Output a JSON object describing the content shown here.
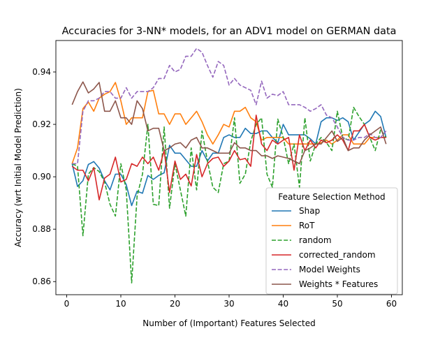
{
  "chart_data": {
    "type": "line",
    "title": "Accuracies for 3-NN* models, for an ADV1 model on GERMAN data",
    "xlabel": "Number of (Important) Features Selected",
    "ylabel": "Accuracy (wrt Initial Model Prediction)",
    "xlim": [
      -2,
      62
    ],
    "ylim": [
      0.855,
      0.952
    ],
    "xticks": [
      0,
      10,
      20,
      30,
      40,
      50,
      60
    ],
    "yticks": [
      0.86,
      0.88,
      0.9,
      0.92,
      0.94
    ],
    "ytick_labels": [
      "0.86",
      "0.88",
      "0.90",
      "0.92",
      "0.94"
    ],
    "grid": false,
    "legend": {
      "title": "Feature Selection Method",
      "placement": "lower-right"
    },
    "x": [
      1,
      2,
      3,
      4,
      5,
      6,
      7,
      8,
      9,
      10,
      11,
      12,
      13,
      14,
      15,
      16,
      17,
      18,
      19,
      20,
      21,
      22,
      23,
      24,
      25,
      26,
      27,
      28,
      29,
      30,
      31,
      32,
      33,
      34,
      35,
      36,
      37,
      38,
      39,
      40,
      41,
      42,
      43,
      44,
      45,
      46,
      47,
      48,
      49,
      50,
      51,
      52,
      53,
      54,
      55,
      56,
      57,
      58,
      59
    ],
    "series": [
      {
        "name": "Shap",
        "color": "#1f77b4",
        "dash": "solid",
        "values": [
          0.905,
          0.8963,
          0.8985,
          0.9047,
          0.9058,
          0.9033,
          0.8985,
          0.895,
          0.901,
          0.901,
          0.897,
          0.889,
          0.8945,
          0.8937,
          0.9005,
          0.899,
          0.9005,
          0.9015,
          0.912,
          0.909,
          0.909,
          0.9065,
          0.904,
          0.904,
          0.91,
          0.906,
          0.909,
          0.909,
          0.915,
          0.916,
          0.915,
          0.915,
          0.9185,
          0.9165,
          0.9165,
          0.9175,
          0.9175,
          0.915,
          0.913,
          0.92,
          0.916,
          0.916,
          0.916,
          0.916,
          0.9145,
          0.9125,
          0.921,
          0.9225,
          0.9225,
          0.9215,
          0.9225,
          0.921,
          0.914,
          0.917,
          0.92,
          0.9215,
          0.925,
          0.923,
          0.915
        ]
      },
      {
        "name": "RoT",
        "color": "#ff7f0e",
        "dash": "solid",
        "values": [
          0.905,
          0.911,
          0.926,
          0.9285,
          0.925,
          0.93,
          0.9315,
          0.9325,
          0.936,
          0.929,
          0.92,
          0.9225,
          0.9225,
          0.9225,
          0.9325,
          0.933,
          0.924,
          0.924,
          0.92,
          0.924,
          0.924,
          0.92,
          0.9225,
          0.925,
          0.921,
          0.916,
          0.9125,
          0.916,
          0.92,
          0.919,
          0.925,
          0.925,
          0.9265,
          0.9225,
          0.921,
          0.914,
          0.915,
          0.915,
          0.915,
          0.915,
          0.9125,
          0.9125,
          0.9125,
          0.9125,
          0.9125,
          0.9125,
          0.913,
          0.914,
          0.9125,
          0.914,
          0.916,
          0.916,
          0.9125,
          0.9125,
          0.9125,
          0.915,
          0.915,
          0.915,
          0.915
        ]
      },
      {
        "name": "random",
        "color": "#2ca02c",
        "dash": "dashed",
        "values": [
          0.905,
          0.904,
          0.8775,
          0.901,
          0.9035,
          0.902,
          0.898,
          0.8895,
          0.885,
          0.905,
          0.895,
          0.8595,
          0.8925,
          0.901,
          0.92,
          0.8895,
          0.889,
          0.919,
          0.888,
          0.905,
          0.895,
          0.885,
          0.911,
          0.895,
          0.9175,
          0.906,
          0.896,
          0.894,
          0.905,
          0.906,
          0.9225,
          0.8975,
          0.901,
          0.9135,
          0.92,
          0.9225,
          0.901,
          0.896,
          0.922,
          0.915,
          0.905,
          0.9125,
          0.896,
          0.9225,
          0.906,
          0.9125,
          0.915,
          0.913,
          0.91,
          0.925,
          0.915,
          0.914,
          0.9265,
          0.923,
          0.92,
          0.915,
          0.91,
          0.918,
          0.915
        ]
      },
      {
        "name": "corrected_random",
        "color": "#d62728",
        "dash": "solid",
        "values": [
          0.904,
          0.9025,
          0.9025,
          0.8985,
          0.9035,
          0.8912,
          0.8995,
          0.901,
          0.9075,
          0.898,
          0.899,
          0.905,
          0.904,
          0.9075,
          0.905,
          0.9075,
          0.9025,
          0.91,
          0.894,
          0.906,
          0.899,
          0.901,
          0.8965,
          0.9085,
          0.9,
          0.905,
          0.907,
          0.9075,
          0.904,
          0.906,
          0.91,
          0.9065,
          0.907,
          0.904,
          0.9235,
          0.9125,
          0.91,
          0.914,
          0.9125,
          0.914,
          0.915,
          0.9025,
          0.916,
          0.91,
          0.914,
          0.911,
          0.914,
          0.913,
          0.914,
          0.916,
          0.914,
          0.91,
          0.9175,
          0.9175,
          0.92,
          0.915,
          0.914,
          0.915,
          0.915
        ]
      },
      {
        "name": "Model Weights",
        "color": "#9467bd",
        "dash": "dashed",
        "values": [
          0.905,
          0.905,
          0.925,
          0.929,
          0.929,
          0.93,
          0.9325,
          0.9325,
          0.93,
          0.93,
          0.934,
          0.93,
          0.9325,
          0.9325,
          0.9325,
          0.934,
          0.9375,
          0.9375,
          0.9425,
          0.94,
          0.941,
          0.946,
          0.946,
          0.949,
          0.9475,
          0.9425,
          0.938,
          0.944,
          0.9425,
          0.935,
          0.9375,
          0.935,
          0.934,
          0.933,
          0.9275,
          0.9365,
          0.93,
          0.9315,
          0.931,
          0.9325,
          0.9275,
          0.9275,
          0.9275,
          0.9265,
          0.925,
          0.926,
          0.9275,
          0.9235,
          0.9225,
          0.919,
          0.915,
          0.914,
          0.914,
          0.915,
          0.915,
          0.9165,
          0.915,
          0.915,
          0.9175
        ]
      },
      {
        "name": "Weights * Features",
        "color": "#8c564b",
        "dash": "solid",
        "values": [
          0.9275,
          0.9325,
          0.9362,
          0.932,
          0.9335,
          0.936,
          0.925,
          0.925,
          0.929,
          0.9225,
          0.9225,
          0.92,
          0.929,
          0.926,
          0.9175,
          0.9185,
          0.9185,
          0.91,
          0.911,
          0.9125,
          0.913,
          0.911,
          0.914,
          0.915,
          0.911,
          0.911,
          0.91,
          0.909,
          0.909,
          0.909,
          0.913,
          0.911,
          0.911,
          0.91,
          0.91,
          0.908,
          0.908,
          0.907,
          0.908,
          0.9075,
          0.907,
          0.906,
          0.905,
          0.91,
          0.911,
          0.9125,
          0.9125,
          0.915,
          0.9175,
          0.9135,
          0.915,
          0.91,
          0.911,
          0.911,
          0.914,
          0.916,
          0.9175,
          0.919,
          0.9125
        ]
      }
    ]
  }
}
